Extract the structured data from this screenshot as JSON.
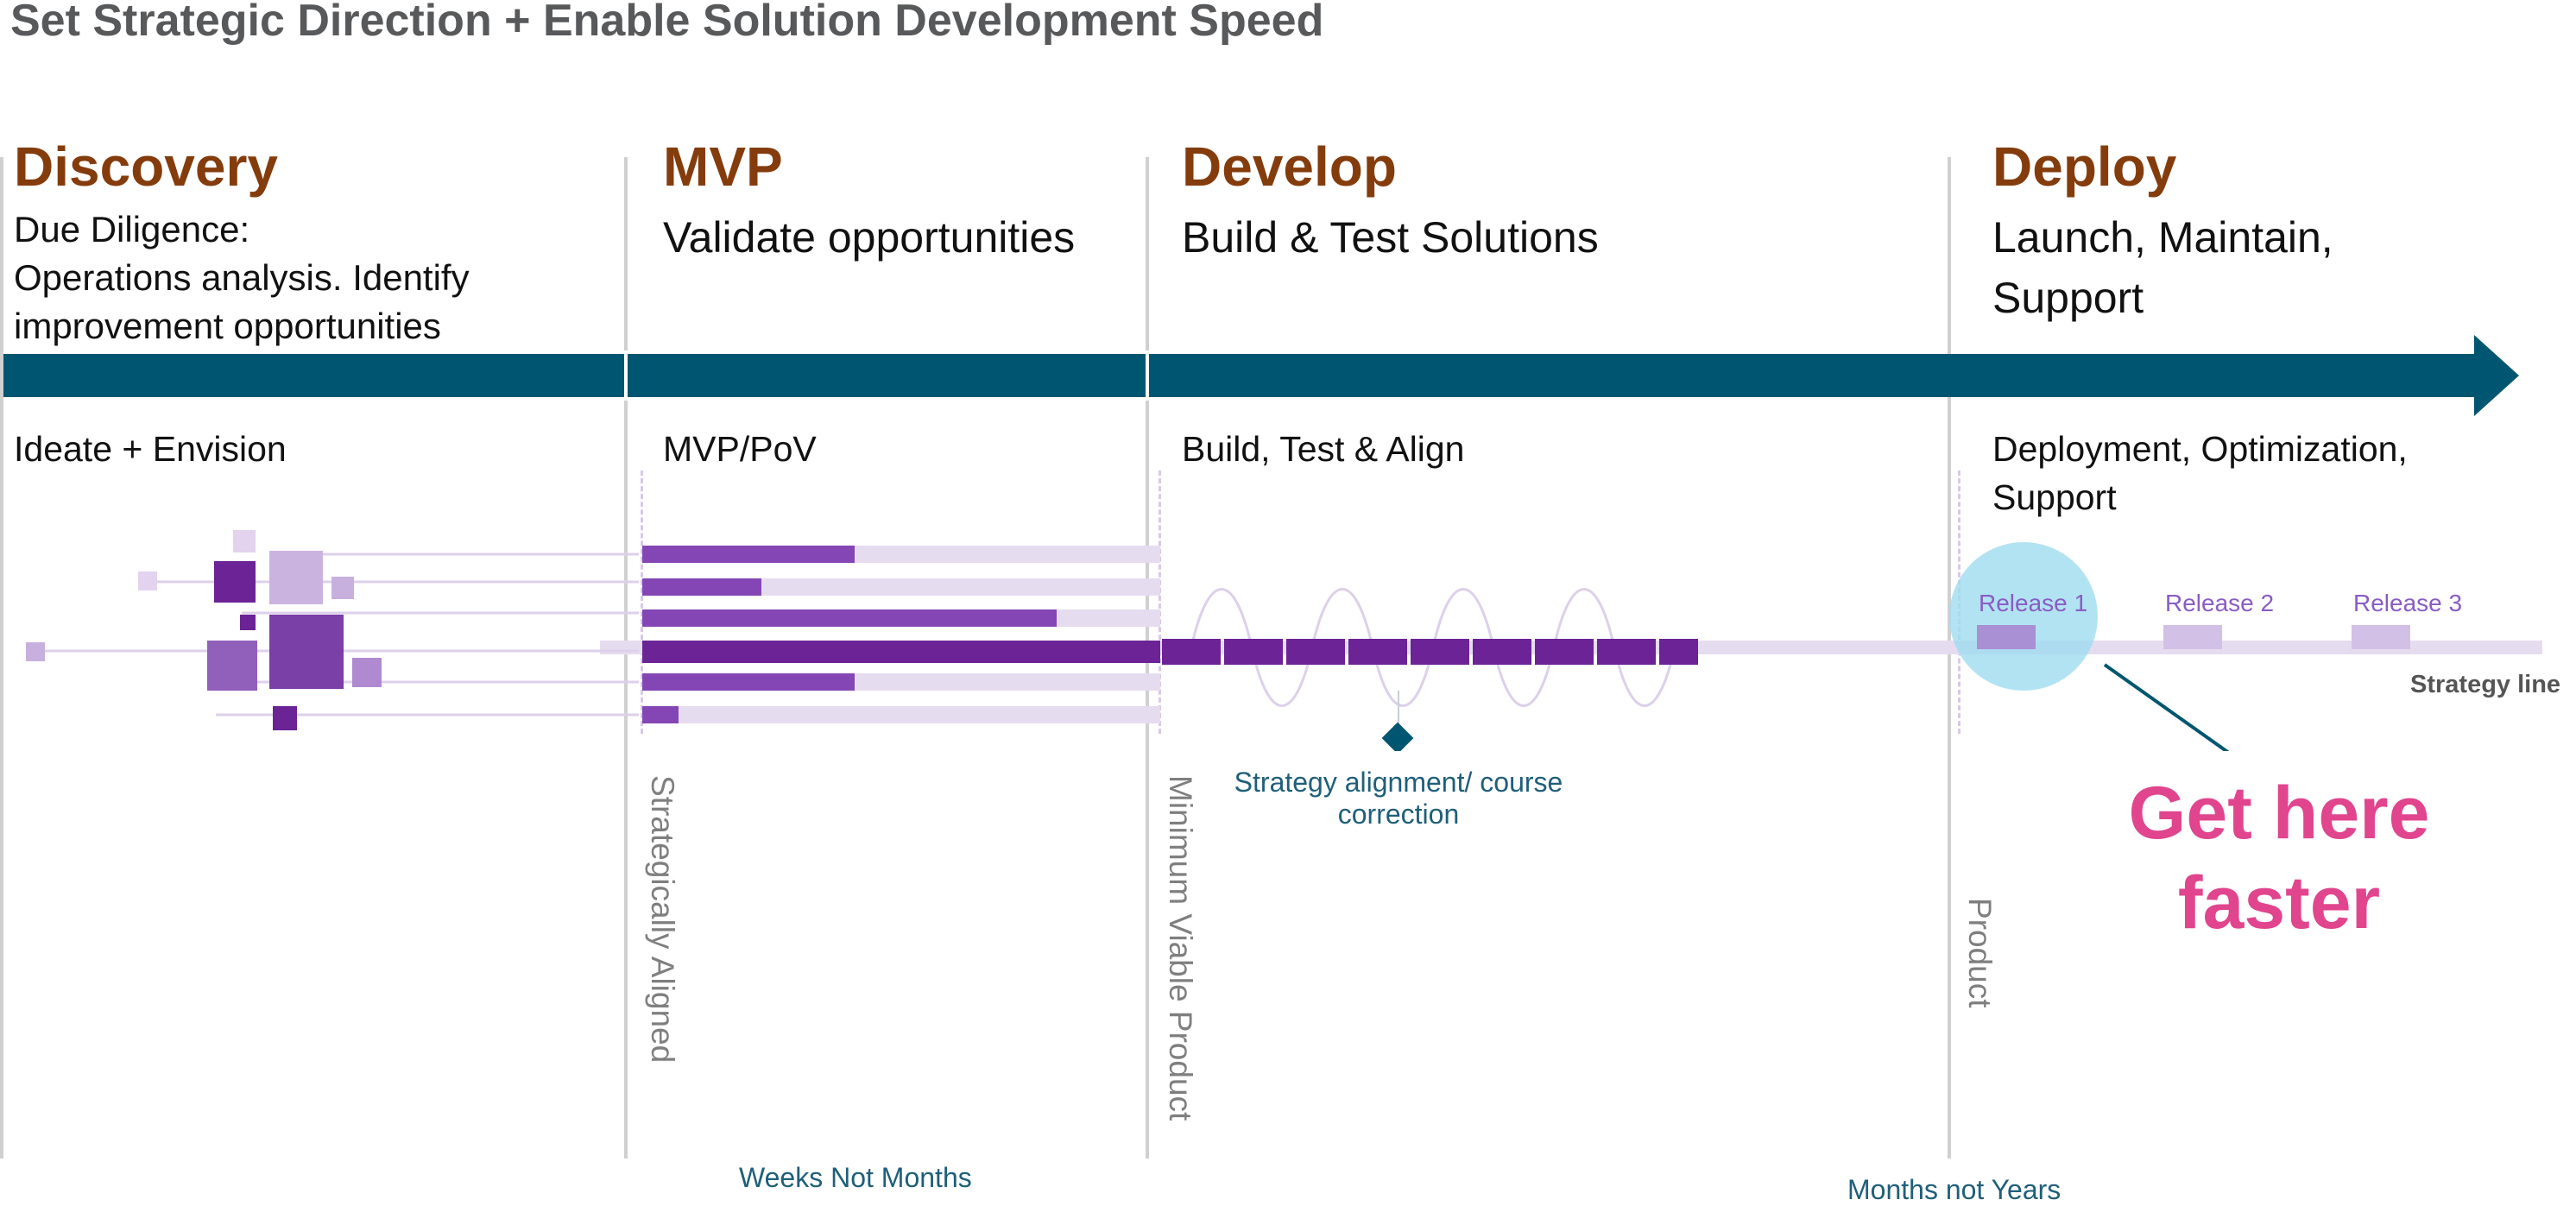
{
  "title": "Set Strategic Direction + Enable Solution Development Speed",
  "phases": [
    {
      "name": "Discovery",
      "subtitle_lines": [
        "Due Diligence:",
        "Operations analysis.  Identify",
        "improvement opportunities"
      ],
      "activity_lines": [
        "Ideate + Envision"
      ]
    },
    {
      "name": "MVP",
      "subtitle_lines": [
        "Validate opportunities"
      ],
      "activity_lines": [
        "MVP/PoV"
      ]
    },
    {
      "name": "Develop",
      "subtitle_lines": [
        "Build & Test Solutions"
      ],
      "activity_lines": [
        "Build, Test & Align"
      ]
    },
    {
      "name": "Deploy",
      "subtitle_lines": [
        "Launch, Maintain,",
        "Support"
      ],
      "activity_lines": [
        "Deployment, Optimization,",
        "Support"
      ]
    }
  ],
  "milestones": [
    "Strategically Aligned",
    "Minimum Viable Product",
    "Product"
  ],
  "strategy_note_lines": [
    "Strategy alignment/ course",
    "correction"
  ],
  "releases": [
    "Release 1",
    "Release 2",
    "Release 3"
  ],
  "strategy_line_label": "Strategy line",
  "callout_lines": [
    "Get here",
    "faster"
  ],
  "timeframes": [
    "Weeks Not Months",
    "Months not Years"
  ],
  "colors": {
    "arrow": "#005670",
    "phase_name": "#843c0c",
    "purple_dark": "#6b2396",
    "purple_light": "#e6dcf0",
    "callout": "#e0458e",
    "highlight": "#9fdcf0"
  },
  "mvp_bar_progress": [
    0.41,
    0.23,
    0.8,
    1.0,
    0.41,
    0.07
  ]
}
